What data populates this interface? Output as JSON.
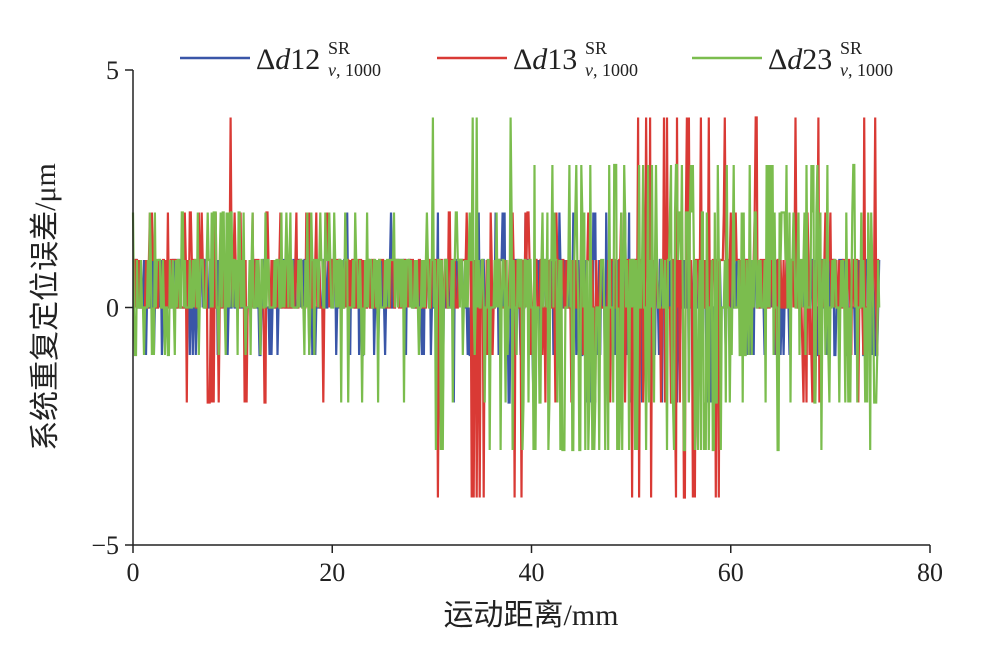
{
  "chart_data": {
    "type": "line",
    "xlabel": "运动距离/mm",
    "ylabel": "系统重复定位误差/μm",
    "xlim": [
      0,
      80
    ],
    "ylim": [
      -5,
      5
    ],
    "xticks": [
      0,
      20,
      40,
      60,
      80
    ],
    "yticks": [
      -5,
      0,
      5
    ],
    "xtick_labels": [
      "0",
      "20",
      "40",
      "60",
      "80"
    ],
    "ytick_labels": [
      "−5",
      "0",
      "5"
    ],
    "grid": false,
    "legend_position": "top",
    "x_step": 0.1,
    "x_range": [
      0,
      75
    ],
    "series": [
      {
        "legend": {
          "prefix": "Δ",
          "var": "d",
          "num": "12",
          "sup": "SR",
          "sub_var": "v",
          "sub_rest": ", 1000"
        },
        "color": "#3a56a8",
        "profile": [
          {
            "x_from": 0,
            "x_to": 5,
            "values": [
              0,
              1,
              0,
              -1,
              1,
              0,
              1,
              0
            ]
          },
          {
            "x_from": 5,
            "x_to": 10,
            "values": [
              0,
              1,
              -1,
              0,
              1,
              0,
              -1,
              1,
              0
            ]
          },
          {
            "x_from": 10,
            "x_to": 20,
            "values": [
              0,
              1,
              0,
              -1,
              1,
              0,
              1,
              0,
              -1,
              0
            ]
          },
          {
            "x_from": 20,
            "x_to": 30,
            "values": [
              1,
              0,
              2,
              0,
              -1,
              1,
              0,
              -1,
              1,
              0
            ]
          },
          {
            "x_from": 30,
            "x_to": 40,
            "values": [
              1,
              0,
              -1,
              2,
              0,
              -2,
              1,
              0,
              -1,
              1
            ]
          },
          {
            "x_from": 40,
            "x_to": 50,
            "values": [
              0,
              1,
              -1,
              2,
              0,
              -1,
              1,
              0,
              -2,
              1
            ]
          },
          {
            "x_from": 50,
            "x_to": 60,
            "values": [
              0,
              -1,
              1,
              0,
              -2,
              1,
              0,
              -1,
              1,
              0
            ]
          },
          {
            "x_from": 60,
            "x_to": 75,
            "values": [
              1,
              0,
              -1,
              1,
              0,
              -1,
              0,
              -1,
              1,
              0,
              -1,
              1,
              0
            ]
          }
        ]
      },
      {
        "legend": {
          "prefix": "Δ",
          "var": "d",
          "num": "13",
          "sup": "SR",
          "sub_var": "v",
          "sub_rest": ", 1000"
        },
        "color": "#d93a35",
        "profile": [
          {
            "x_from": 0,
            "x_to": 5,
            "values": [
              0,
              1,
              0,
              2,
              1,
              0,
              1,
              0
            ]
          },
          {
            "x_from": 5,
            "x_to": 10,
            "values": [
              2,
              0,
              4,
              -2,
              2,
              1,
              0,
              -2,
              1
            ]
          },
          {
            "x_from": 10,
            "x_to": 20,
            "values": [
              2,
              0,
              -2,
              1,
              0,
              1,
              2,
              0,
              1,
              0
            ]
          },
          {
            "x_from": 20,
            "x_to": 30,
            "values": [
              1,
              0,
              1,
              0,
              1,
              0,
              1,
              0,
              1,
              0
            ]
          },
          {
            "x_from": 30,
            "x_to": 40,
            "values": [
              1,
              0,
              2,
              0,
              1,
              -1,
              1,
              0,
              -4,
              1
            ]
          },
          {
            "x_from": 40,
            "x_to": 50,
            "values": [
              0,
              2,
              0,
              1,
              -1,
              2,
              0,
              -2,
              1,
              0
            ]
          },
          {
            "x_from": 50,
            "x_to": 60,
            "values": [
              4,
              -4,
              2,
              0,
              1,
              -2,
              4,
              -4,
              1,
              0
            ]
          },
          {
            "x_from": 60,
            "x_to": 75,
            "values": [
              4,
              -2,
              1,
              0,
              2,
              -1,
              1,
              0,
              1,
              0,
              1,
              0,
              1
            ]
          }
        ]
      },
      {
        "legend": {
          "prefix": "Δ",
          "var": "d",
          "num": "23",
          "sup": "SR",
          "sub_var": "v",
          "sub_rest": ", 1000"
        },
        "color": "#7bbd4e",
        "profile": [
          {
            "x_from": 0,
            "x_to": 5,
            "values": [
              0,
              1,
              -1,
              2,
              0,
              1,
              -1,
              0
            ]
          },
          {
            "x_from": 5,
            "x_to": 10,
            "values": [
              1,
              0,
              2,
              0,
              -1,
              1,
              2,
              0,
              -1
            ]
          },
          {
            "x_from": 10,
            "x_to": 20,
            "values": [
              1,
              0,
              2,
              -1,
              1,
              0,
              2,
              -1,
              1,
              0
            ]
          },
          {
            "x_from": 20,
            "x_to": 30,
            "values": [
              1,
              0,
              -1,
              1,
              2,
              0,
              -2,
              1,
              2,
              0
            ]
          },
          {
            "x_from": 30,
            "x_to": 40,
            "values": [
              1,
              2,
              0,
              -1,
              1,
              -2,
              1,
              0,
              -3,
              4
            ]
          },
          {
            "x_from": 40,
            "x_to": 50,
            "values": [
              -3,
              2,
              1,
              -3,
              2,
              0,
              -3,
              3,
              -2,
              3
            ]
          },
          {
            "x_from": 50,
            "x_to": 60,
            "values": [
              -3,
              3,
              -3,
              2,
              -2,
              3,
              -3,
              2,
              -2,
              3
            ]
          },
          {
            "x_from": 60,
            "x_to": 75,
            "values": [
              -2,
              3,
              -2,
              2,
              -1,
              2,
              0,
              -1,
              3,
              -3,
              2,
              1,
              0
            ]
          }
        ]
      }
    ]
  }
}
